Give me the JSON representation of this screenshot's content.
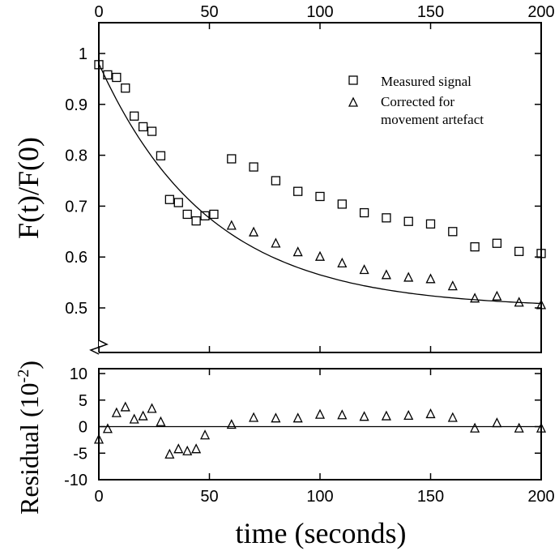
{
  "chart_data": [
    {
      "type": "scatter",
      "panel": "main",
      "ylabel": "F(t)/F(0)",
      "xlim": [
        0,
        200
      ],
      "ylim": [
        0.5,
        1.0
      ],
      "x_ticks": [
        0,
        50,
        100,
        150,
        200
      ],
      "x_tick_labels": [
        "0",
        "50",
        "100",
        "150",
        "200"
      ],
      "y_ticks": [
        0.5,
        0.6,
        0.7,
        0.8,
        0.9,
        1.0
      ],
      "y_tick_labels": [
        "0.5",
        "0.6",
        "0.7",
        "0.8",
        "0.9",
        "1"
      ],
      "legend_placement": "top-right",
      "series": [
        {
          "name": "Measured signal",
          "marker": "square",
          "points": [
            [
              0,
              0.978
            ],
            [
              4,
              0.958
            ],
            [
              8,
              0.953
            ],
            [
              12,
              0.932
            ],
            [
              16,
              0.877
            ],
            [
              20,
              0.856
            ],
            [
              24,
              0.847
            ],
            [
              28,
              0.799
            ],
            [
              32,
              0.713
            ],
            [
              36,
              0.707
            ],
            [
              40,
              0.684
            ],
            [
              44,
              0.671
            ],
            [
              48,
              0.681
            ],
            [
              52,
              0.684
            ],
            [
              60,
              0.793
            ],
            [
              70,
              0.777
            ],
            [
              80,
              0.75
            ],
            [
              90,
              0.729
            ],
            [
              100,
              0.719
            ],
            [
              110,
              0.704
            ],
            [
              120,
              0.687
            ],
            [
              130,
              0.677
            ],
            [
              140,
              0.67
            ],
            [
              150,
              0.665
            ],
            [
              160,
              0.65
            ],
            [
              170,
              0.62
            ],
            [
              180,
              0.627
            ],
            [
              190,
              0.611
            ],
            [
              200,
              0.607
            ]
          ]
        },
        {
          "name": "Corrected for movement artefact",
          "marker": "triangle",
          "points": [
            [
              60,
              0.661
            ],
            [
              70,
              0.648
            ],
            [
              80,
              0.626
            ],
            [
              90,
              0.609
            ],
            [
              100,
              0.6
            ],
            [
              110,
              0.587
            ],
            [
              120,
              0.574
            ],
            [
              130,
              0.564
            ],
            [
              140,
              0.559
            ],
            [
              150,
              0.556
            ],
            [
              160,
              0.542
            ],
            [
              170,
              0.518
            ],
            [
              180,
              0.522
            ],
            [
              190,
              0.51
            ],
            [
              200,
              0.505
            ]
          ]
        }
      ],
      "fit": {
        "type": "exponential",
        "plateau": 0.5,
        "amplitude": 0.48,
        "tau_seconds": 50
      }
    },
    {
      "type": "scatter",
      "panel": "residual",
      "ylabel_main": "Residual (10",
      "ylabel_sup": "-2",
      "ylabel_close": ")",
      "xlabel": "time (seconds)",
      "xlim": [
        0,
        200
      ],
      "ylim": [
        -10,
        10
      ],
      "x_ticks": [
        0,
        50,
        100,
        150,
        200
      ],
      "x_tick_labels": [
        "0",
        "50",
        "100",
        "150",
        "200"
      ],
      "y_ticks": [
        -10,
        -5,
        0,
        5,
        10
      ],
      "y_tick_labels": [
        "-10",
        "-5",
        "0",
        "5",
        "10"
      ],
      "zero_line": true,
      "series": [
        {
          "marker": "triangle",
          "points": [
            [
              0,
              -2.5
            ],
            [
              4,
              -0.5
            ],
            [
              8,
              2.5
            ],
            [
              12,
              3.6
            ],
            [
              16,
              1.3
            ],
            [
              20,
              1.9
            ],
            [
              24,
              3.3
            ],
            [
              28,
              0.8
            ],
            [
              32,
              -5.3
            ],
            [
              36,
              -4.3
            ],
            [
              40,
              -4.7
            ],
            [
              44,
              -4.3
            ],
            [
              48,
              -1.7
            ],
            [
              60,
              0.3
            ],
            [
              70,
              1.6
            ],
            [
              80,
              1.5
            ],
            [
              90,
              1.5
            ],
            [
              100,
              2.2
            ],
            [
              110,
              2.1
            ],
            [
              120,
              1.8
            ],
            [
              130,
              1.9
            ],
            [
              140,
              2.0
            ],
            [
              150,
              2.3
            ],
            [
              160,
              1.6
            ],
            [
              170,
              -0.4
            ],
            [
              180,
              0.6
            ],
            [
              190,
              -0.4
            ],
            [
              200,
              -0.4
            ]
          ]
        }
      ]
    }
  ]
}
